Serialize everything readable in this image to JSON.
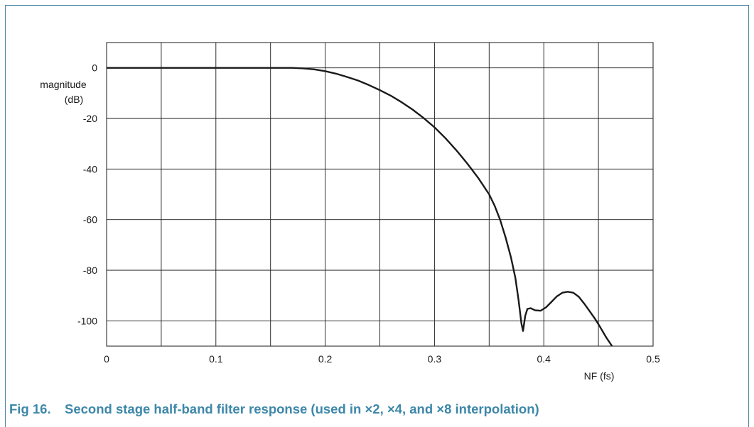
{
  "figure": {
    "number": "Fig 16.",
    "caption": "Second stage half-band filter response (used in ×2, ×4, and ×8 interpolation)",
    "border_color": "#4a86a5",
    "caption_color": "#3d87a9"
  },
  "chart_data": {
    "type": "line",
    "title": "",
    "xlabel": "NF (fs)",
    "ylabel": "magnitude (dB)",
    "ylabel_lines": [
      "magnitude",
      "(dB)"
    ],
    "xlim": [
      0,
      0.5
    ],
    "ylim": [
      -110,
      10
    ],
    "xticks": [
      0,
      0.05,
      0.1,
      0.15,
      0.2,
      0.25,
      0.3,
      0.35,
      0.4,
      0.45,
      0.5
    ],
    "xtick_labels": [
      "0",
      "",
      "0.1",
      "",
      "0.2",
      "",
      "0.3",
      "",
      "0.4",
      "",
      "0.5"
    ],
    "yticks": [
      0,
      -20,
      -40,
      -60,
      -80,
      -100
    ],
    "ytick_labels": [
      "0",
      "-20",
      "-40",
      "-60",
      "-80",
      "-100"
    ],
    "grid": true,
    "line_color": "#1a1a1a",
    "series": [
      {
        "x": [
          0,
          0.05,
          0.1,
          0.15,
          0.17,
          0.18,
          0.19,
          0.2,
          0.21,
          0.22,
          0.23,
          0.24,
          0.25,
          0.26,
          0.27,
          0.28,
          0.29,
          0.3,
          0.31,
          0.32,
          0.33,
          0.34,
          0.35,
          0.355,
          0.36,
          0.365,
          0.37,
          0.374,
          0.377,
          0.3795,
          0.381,
          0.383,
          0.385,
          0.388,
          0.392,
          0.397,
          0.402,
          0.407,
          0.412,
          0.417,
          0.422,
          0.427,
          0.432,
          0.437,
          0.442,
          0.447,
          0.452,
          0.457,
          0.4625
        ],
        "y": [
          0,
          0,
          0,
          0,
          0,
          -0.2,
          -0.6,
          -1.3,
          -2.3,
          -3.6,
          -5.0,
          -6.8,
          -8.8,
          -11.0,
          -13.6,
          -16.5,
          -19.8,
          -23.5,
          -27.8,
          -32.6,
          -37.8,
          -43.5,
          -50,
          -54.5,
          -60,
          -67,
          -75,
          -83,
          -92,
          -101,
          -104,
          -98,
          -95.3,
          -95.0,
          -95.8,
          -96.0,
          -94.7,
          -92.5,
          -90.3,
          -88.9,
          -88.5,
          -88.9,
          -90.5,
          -93.2,
          -96.2,
          -99.3,
          -102.8,
          -106.5,
          -110
        ]
      }
    ]
  }
}
